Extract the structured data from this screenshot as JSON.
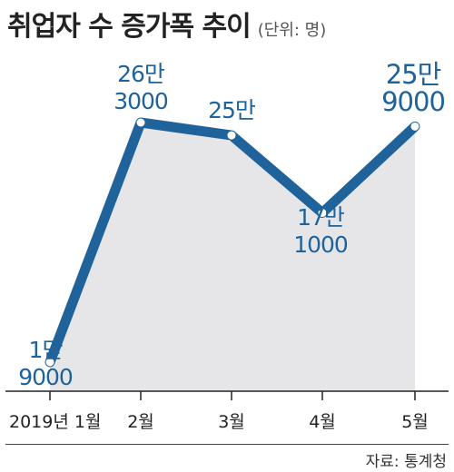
{
  "header": {
    "title": "취업자 수 증가폭 추이",
    "unit": "(단위: 명)"
  },
  "footer": {
    "source": "자료: 통계청"
  },
  "colors": {
    "line": "#1f639a",
    "area": "#e6e6e8",
    "label": "#1f639a",
    "axis": "#222222"
  },
  "chart_data": {
    "type": "area",
    "title": "취업자 수 증가폭 추이",
    "unit": "(단위: 명)",
    "categories": [
      "2019년 1월",
      "2월",
      "3월",
      "4월",
      "5월"
    ],
    "values": [
      19000,
      263000,
      250000,
      171000,
      259000
    ],
    "data_labels": [
      [
        "1만",
        "9000"
      ],
      [
        "26만",
        "3000"
      ],
      [
        "25만",
        ""
      ],
      [
        "17만",
        "1000"
      ],
      [
        "25만",
        "9000"
      ]
    ],
    "grid": false,
    "legend": "none"
  }
}
